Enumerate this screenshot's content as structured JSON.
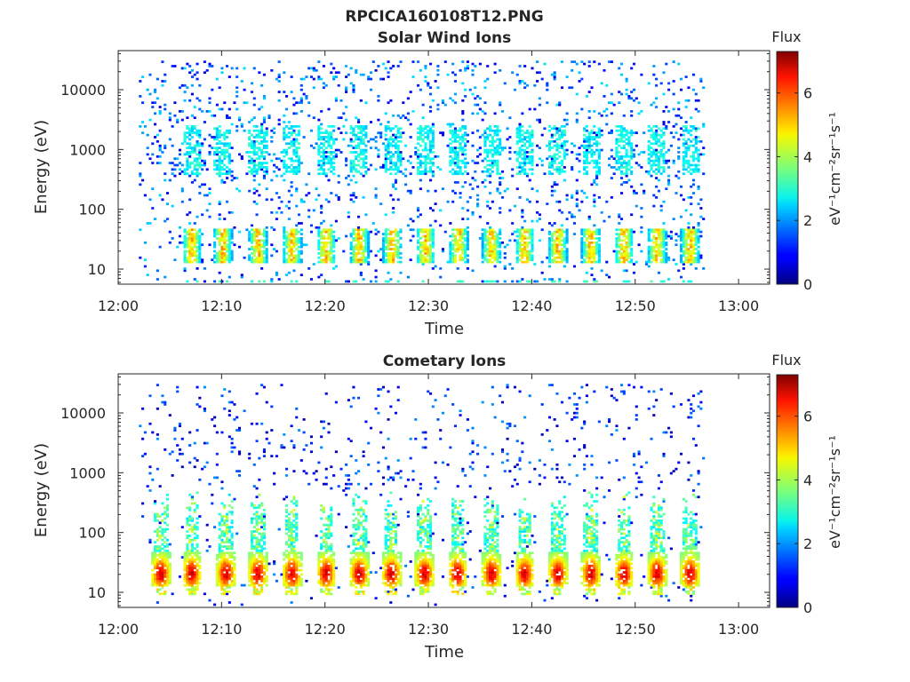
{
  "figure": {
    "title": "RPCICA160108T12.PNG"
  },
  "chart_data": [
    {
      "type": "heatmap",
      "title": "Solar Wind Ions",
      "xlabel": "Time",
      "ylabel": "Energy (eV)",
      "y_scale": "log",
      "xlim": [
        "12:00",
        "13:03"
      ],
      "ylim": [
        5.6,
        45000
      ],
      "x_ticks": [
        "12:00",
        "12:10",
        "12:20",
        "12:30",
        "12:40",
        "12:50",
        "13:00"
      ],
      "y_ticks": [
        {
          "value": 10,
          "label": "10"
        },
        {
          "value": 100,
          "label": "100"
        },
        {
          "value": 1000,
          "label": "1000"
        },
        {
          "value": 10000,
          "label": "10000"
        }
      ],
      "colorbar": {
        "label": "Flux",
        "unit_label": "eV⁻¹cm⁻²sr⁻¹s⁻¹",
        "range": [
          0,
          7.3
        ],
        "ticks": [
          "0",
          "2",
          "4",
          "6"
        ],
        "colormap": "jet"
      },
      "data_span": [
        "12:02",
        "12:56.5"
      ],
      "bursts_minutes": [
        7,
        10,
        13.4,
        16.7,
        20,
        23.2,
        26.4,
        29.6,
        32.8,
        36,
        39.2,
        42.4,
        45.6,
        48.8,
        52,
        55.2
      ],
      "features": {
        "low_energy_band_eV": [
          12,
          45
        ],
        "low_energy_flux": [
          1.2,
          5.5
        ],
        "mid_energy_band_eV": [
          350,
          2500
        ],
        "mid_energy_flux": [
          2.3,
          3.2
        ],
        "background_flux": [
          0.6,
          2.6
        ]
      }
    },
    {
      "type": "heatmap",
      "title": "Cometary Ions",
      "xlabel": "Time",
      "ylabel": "Energy (eV)",
      "y_scale": "log",
      "xlim": [
        "12:00",
        "13:03"
      ],
      "ylim": [
        5.6,
        45000
      ],
      "x_ticks": [
        "12:00",
        "12:10",
        "12:20",
        "12:30",
        "12:40",
        "12:50",
        "13:00"
      ],
      "y_ticks": [
        {
          "value": 10,
          "label": "10"
        },
        {
          "value": 100,
          "label": "100"
        },
        {
          "value": 1000,
          "label": "1000"
        },
        {
          "value": 10000,
          "label": "10000"
        }
      ],
      "colorbar": {
        "label": "Flux",
        "unit_label": "eV⁻¹cm⁻²sr⁻¹s⁻¹",
        "range": [
          0,
          7.3
        ],
        "ticks": [
          "0",
          "2",
          "4",
          "6"
        ],
        "colormap": "jet"
      },
      "data_span": [
        "12:02",
        "12:56.5"
      ],
      "bursts_minutes": [
        4,
        7,
        10.3,
        13.4,
        16.7,
        20,
        23.2,
        26.3,
        29.5,
        32.7,
        36,
        39.2,
        42.4,
        45.6,
        48.8,
        52,
        55.2
      ],
      "features": {
        "low_energy_band_eV": [
          12,
          45
        ],
        "low_energy_flux": [
          3.5,
          7
        ],
        "plume_top_eV": 500,
        "plume_flux": [
          2.5,
          4.5
        ],
        "background_flux": [
          0.3,
          2
        ]
      }
    }
  ]
}
